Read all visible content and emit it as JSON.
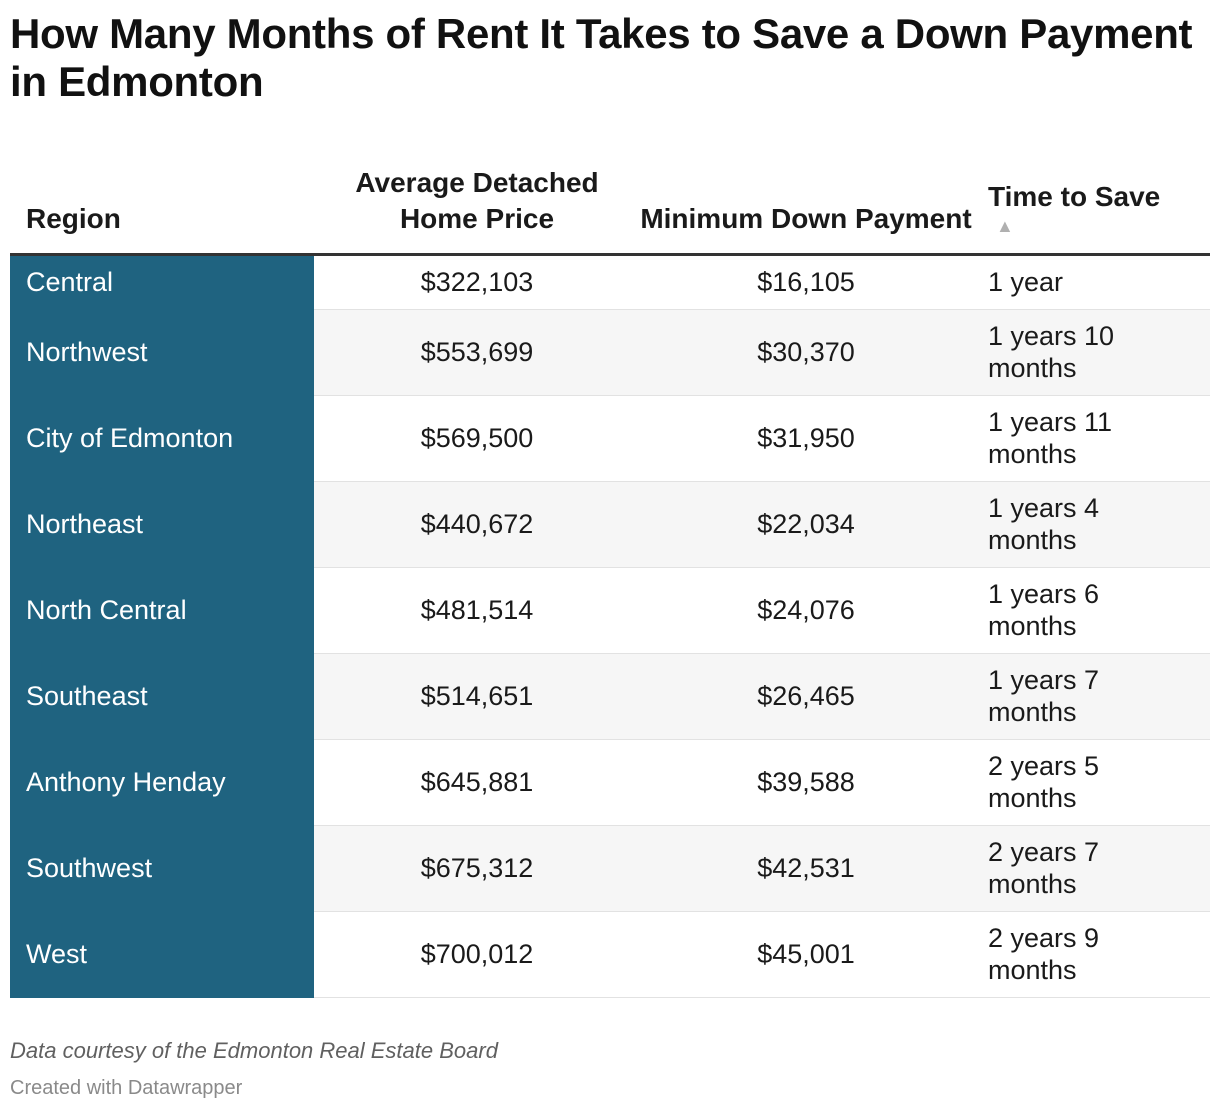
{
  "title": "How Many Months of Rent It Takes to Save a Down Payment in Edmonton",
  "footer": {
    "note": "Data courtesy of the Edmonton Real Estate Board",
    "credit": "Created with Datawrapper"
  },
  "colors": {
    "region_fill": "#1f6380",
    "header_rule": "#333333",
    "stripe": "#f6f6f6"
  },
  "chart_data": {
    "type": "table",
    "columns": [
      "Region",
      "Average Detached Home Price",
      "Minimum Down Payment",
      "Time to Save"
    ],
    "sort": {
      "column": "Time to Save",
      "icon": "▲"
    },
    "rows": [
      [
        "Central",
        "$322,103",
        "$16,105",
        "1 year"
      ],
      [
        "Northwest",
        "$553,699",
        "$30,370",
        "1 years 10 months"
      ],
      [
        "City of Edmonton",
        "$569,500",
        "$31,950",
        "1 years 11 months"
      ],
      [
        "Northeast",
        "$440,672",
        "$22,034",
        "1 years 4 months"
      ],
      [
        "North Central",
        "$481,514",
        "$24,076",
        "1 years 6 months"
      ],
      [
        "Southeast",
        "$514,651",
        "$26,465",
        "1 years 7 months"
      ],
      [
        "Anthony Henday",
        "$645,881",
        "$39,588",
        "2 years 5 months"
      ],
      [
        "Southwest",
        "$675,312",
        "$42,531",
        "2 years 7 months"
      ],
      [
        "West",
        "$700,012",
        "$45,001",
        "2 years 9 months"
      ]
    ]
  }
}
